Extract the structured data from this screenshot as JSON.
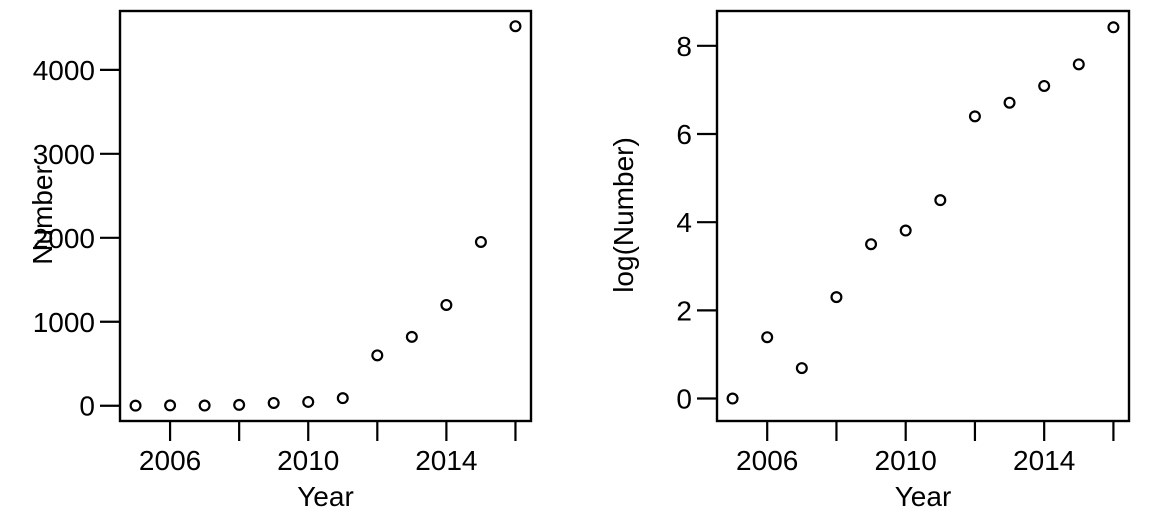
{
  "figure": {
    "background": "#ffffff",
    "foreground": "#000000",
    "description": "Two base-R style scatter plots of yearly counts, raw and log scale"
  },
  "chart_data": [
    {
      "type": "scatter",
      "title": "",
      "xlabel": "Year",
      "ylabel": "Number",
      "x": [
        2005,
        2006,
        2007,
        2008,
        2009,
        2010,
        2011,
        2012,
        2013,
        2014,
        2015,
        2016
      ],
      "y": [
        1,
        4,
        2,
        10,
        33,
        45,
        90,
        600,
        820,
        1200,
        1950,
        4520
      ],
      "xlim": [
        2004.55,
        2016.45
      ],
      "ylim": [
        -182,
        4701
      ],
      "xticks": [
        2006,
        2008,
        2010,
        2012,
        2014,
        2016
      ],
      "xtick_labels": [
        "2006",
        "",
        "2010",
        "",
        "2014",
        ""
      ],
      "yticks": [
        0,
        1000,
        2000,
        3000,
        4000
      ],
      "ytick_labels": [
        "0",
        "1000",
        "2000",
        "3000",
        "4000"
      ],
      "grid": false,
      "legend": "none",
      "marker": "open-circle",
      "point_color": "#000000",
      "axis_color": "#000000"
    },
    {
      "type": "scatter",
      "title": "",
      "xlabel": "Year",
      "ylabel": "log(Number)",
      "x": [
        2005,
        2006,
        2007,
        2008,
        2009,
        2010,
        2011,
        2012,
        2013,
        2014,
        2015,
        2016
      ],
      "y": [
        0,
        1.39,
        0.69,
        2.3,
        3.5,
        3.81,
        4.5,
        6.4,
        6.71,
        7.09,
        7.58,
        8.42
      ],
      "xlim": [
        2004.55,
        2016.45
      ],
      "ylim": [
        -0.51,
        8.79
      ],
      "xticks": [
        2006,
        2008,
        2010,
        2012,
        2014,
        2016
      ],
      "xtick_labels": [
        "2006",
        "",
        "2010",
        "",
        "2014",
        ""
      ],
      "yticks": [
        0,
        2,
        4,
        6,
        8
      ],
      "ytick_labels": [
        "0",
        "2",
        "4",
        "6",
        "8"
      ],
      "grid": false,
      "legend": "none",
      "marker": "open-circle",
      "point_color": "#000000",
      "axis_color": "#000000"
    }
  ]
}
